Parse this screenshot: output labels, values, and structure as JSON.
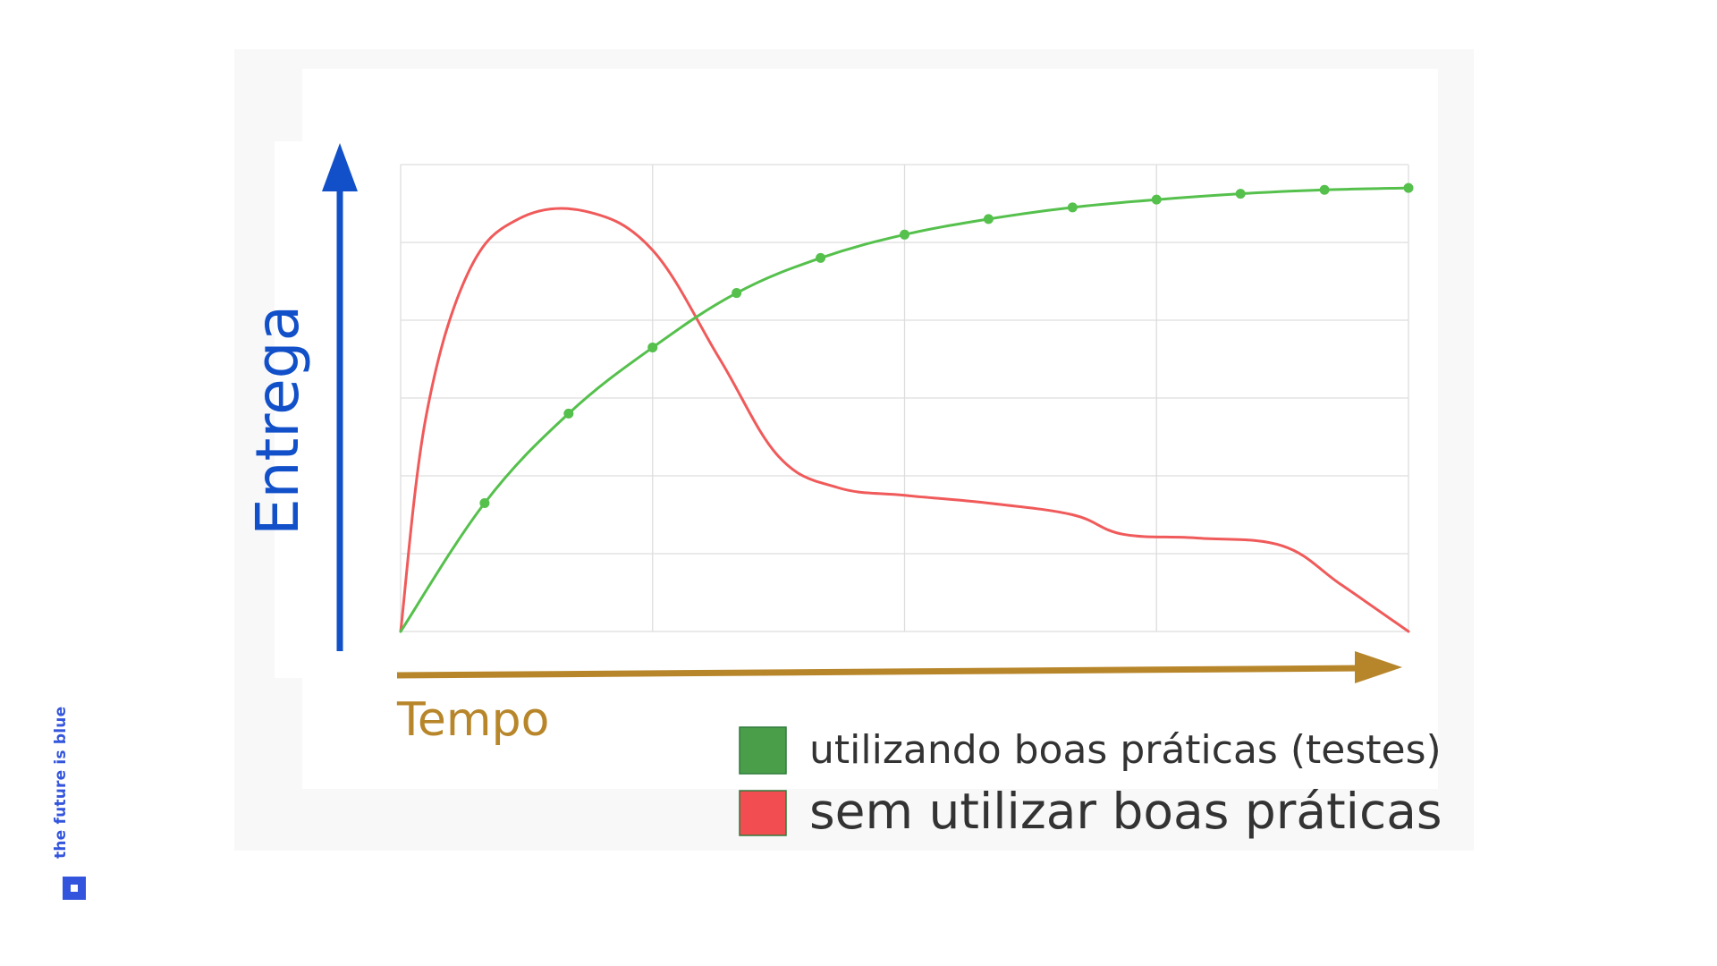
{
  "branding": {
    "text": "the future is blue",
    "color": "#3355dd"
  },
  "chart_data": {
    "type": "line",
    "title": "",
    "xlabel": "Tempo",
    "ylabel": "Entrega",
    "xlim": [
      0,
      12
    ],
    "ylim": [
      0,
      12
    ],
    "x_ticks": [
      0,
      3,
      6,
      9,
      12
    ],
    "y_ticks": [
      0,
      2,
      4,
      6,
      8,
      10,
      12
    ],
    "grid": true,
    "legend_position": "bottom-right",
    "colors": {
      "ylabel": "#1150c8",
      "xlabel": "#b8862a",
      "grid": "#dddddd",
      "plot_bg": "#ffffff",
      "frame_bg": "#f8f8f8"
    },
    "series": [
      {
        "name": "utilizando boas práticas (testes)",
        "color": "#55c04c",
        "legend_color": "#4a9e4a",
        "markers": true,
        "x": [
          0,
          1,
          2,
          3,
          4,
          5,
          6,
          7,
          8,
          9,
          10,
          11,
          12
        ],
        "y": [
          0,
          3.3,
          5.6,
          7.3,
          8.7,
          9.6,
          10.2,
          10.6,
          10.9,
          11.1,
          11.25,
          11.35,
          11.4
        ]
      },
      {
        "name": "sem utilizar boas práticas",
        "color": "#f05a5a",
        "legend_color": "#f24d50",
        "markers": false,
        "x": [
          0,
          0.3,
          0.8,
          1.4,
          2.2,
          3.0,
          3.8,
          4.5,
          5.2,
          6.0,
          7.0,
          8.0,
          8.6,
          9.5,
          10.5,
          11.2,
          12
        ],
        "y": [
          0,
          5.5,
          9.2,
          10.6,
          10.8,
          9.8,
          7.0,
          4.5,
          3.7,
          3.5,
          3.3,
          3.0,
          2.5,
          2.4,
          2.2,
          1.2,
          0
        ]
      }
    ]
  }
}
